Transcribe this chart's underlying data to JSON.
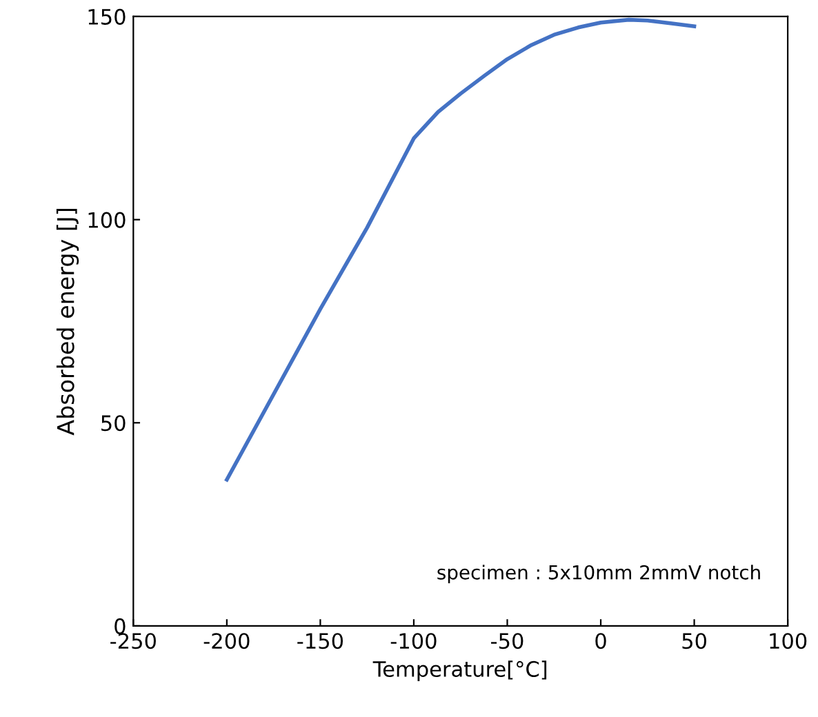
{
  "chart_data": {
    "type": "line",
    "xlabel": "Temperature[°C]",
    "ylabel": "Absorbed energy [J]",
    "x": [
      -200,
      -175,
      -150,
      -125,
      -100,
      -87,
      -75,
      -62,
      -50,
      -37,
      -25,
      -12,
      0,
      15,
      25,
      38,
      50
    ],
    "series": [
      {
        "color": "#4472c4",
        "values": [
          36,
          57,
          78,
          98,
          120,
          126.5,
          131,
          135.5,
          139.5,
          143,
          145.5,
          147.3,
          148.5,
          149.2,
          149,
          148.3,
          147.6
        ]
      }
    ],
    "xlim": [
      -250,
      100
    ],
    "xticks": [
      -250,
      -200,
      -150,
      -100,
      -50,
      0,
      50,
      100
    ],
    "ylim": [
      0,
      150
    ],
    "yticks": [
      0,
      50,
      100,
      150
    ],
    "grid": false,
    "marker": "none",
    "line_style": "solid",
    "annotations": [
      "specimen : 5x10mm 2mmV notch"
    ]
  }
}
